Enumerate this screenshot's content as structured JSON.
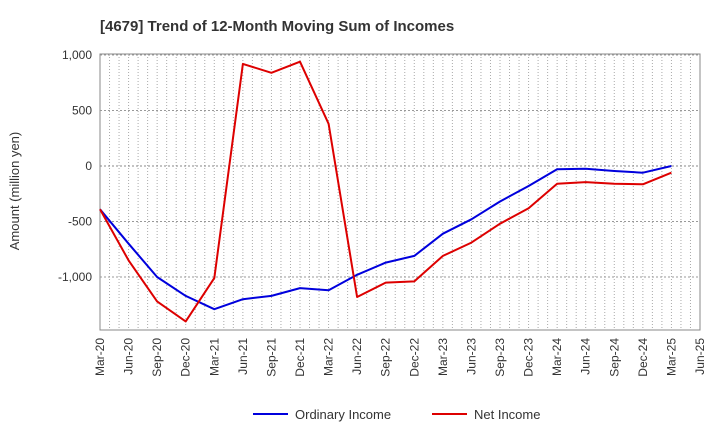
{
  "chart_data": {
    "type": "line",
    "title": "[4679]  Trend of 12-Month Moving Sum of Incomes",
    "xlabel": "",
    "ylabel": "Amount (million yen)",
    "ylim": [
      -1450,
      1000
    ],
    "yticks": [
      1000,
      500,
      0,
      -500,
      -1000
    ],
    "ytick_labels": [
      "1,000",
      "500",
      "0",
      "-500",
      "-1,000"
    ],
    "categories": [
      "Mar-20",
      "Jun-20",
      "Sep-20",
      "Dec-20",
      "Mar-21",
      "Jun-21",
      "Sep-21",
      "Dec-21",
      "Mar-22",
      "Jun-22",
      "Sep-22",
      "Dec-22",
      "Mar-23",
      "Jun-23",
      "Sep-23",
      "Dec-23",
      "Mar-24",
      "Jun-24",
      "Sep-24",
      "Dec-24",
      "Mar-25",
      "Jun-25"
    ],
    "grid": true,
    "legend_position": "bottom",
    "series": [
      {
        "name": "Ordinary Income",
        "color": "#0000dd",
        "values": [
          -390,
          -700,
          -1000,
          -1170,
          -1290,
          -1200,
          -1170,
          -1100,
          -1120,
          -980,
          -870,
          -810,
          -610,
          -480,
          -320,
          -180,
          -30,
          -25,
          -45,
          -60,
          0,
          null
        ]
      },
      {
        "name": "Net Income",
        "color": "#dd0000",
        "values": [
          -390,
          -850,
          -1220,
          -1400,
          -1010,
          920,
          840,
          940,
          380,
          -1180,
          -1050,
          -1040,
          -810,
          -690,
          -520,
          -380,
          -160,
          -145,
          -160,
          -165,
          -60,
          null
        ]
      }
    ]
  }
}
